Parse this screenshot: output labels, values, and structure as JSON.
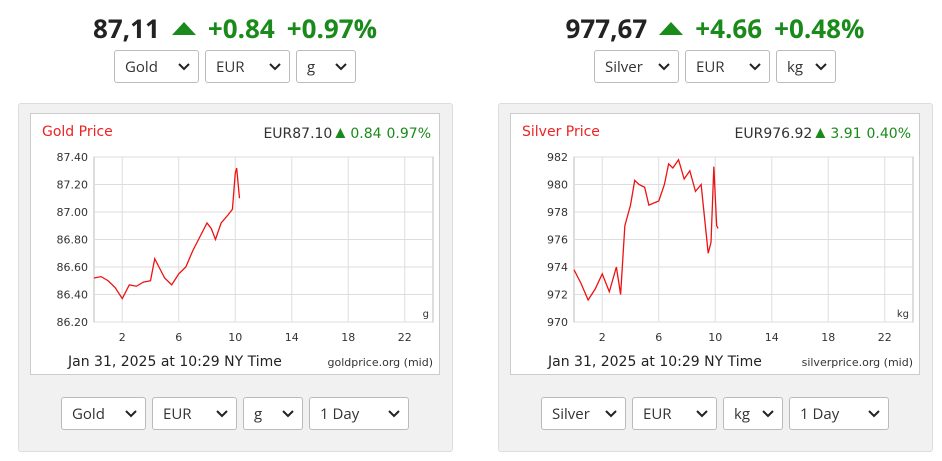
{
  "panels": [
    {
      "price": "87,11",
      "change": "+0.84",
      "change_pct": "+0.97%",
      "top_selects": [
        "Gold",
        "EUR",
        "g"
      ],
      "chart": {
        "type": "line",
        "title": "Gold Price",
        "quote": "EUR87.10",
        "quote_change": "0.84",
        "quote_change_pct": "0.97%",
        "unit": "g",
        "timestamp": "Jan 31, 2025 at 10:29 NY Time",
        "source": "goldprice.org (mid)",
        "x": [
          0,
          0.5,
          1,
          1.5,
          2,
          2.5,
          3,
          3.5,
          4,
          4.3,
          4.6,
          5,
          5.5,
          6,
          6.5,
          7,
          7.5,
          8,
          8.3,
          8.6,
          9,
          9.5,
          9.8,
          10,
          10.1,
          10.3
        ],
        "values": [
          86.52,
          86.53,
          86.5,
          86.45,
          86.37,
          86.47,
          86.46,
          86.49,
          86.5,
          86.66,
          86.6,
          86.52,
          86.47,
          86.55,
          86.6,
          86.72,
          86.82,
          86.92,
          86.88,
          86.8,
          86.92,
          86.98,
          87.02,
          87.28,
          87.32,
          87.1
        ],
        "color": "#ee1111",
        "xlim": [
          0,
          24
        ],
        "xticks": [
          2,
          6,
          10,
          14,
          18,
          22
        ],
        "ylim": [
          86.2,
          87.4
        ],
        "yticks": [
          {
            "value": 86.2,
            "label": "86.20"
          },
          {
            "value": 86.4,
            "label": "86.40"
          },
          {
            "value": 86.6,
            "label": "86.60"
          },
          {
            "value": 86.8,
            "label": "86.80"
          },
          {
            "value": 87,
            "label": "87.00"
          },
          {
            "value": 87.2,
            "label": "87.20"
          },
          {
            "value": 87.4,
            "label": "87.40"
          }
        ],
        "grid": true
      },
      "bottom_selects": [
        "Gold",
        "EUR",
        "g",
        "1 Day"
      ]
    },
    {
      "price": "977,67",
      "change": "+4.66",
      "change_pct": "+0.48%",
      "top_selects": [
        "Silver",
        "EUR",
        "kg"
      ],
      "chart": {
        "type": "line",
        "title": "Silver Price",
        "quote": "EUR976.92",
        "quote_change": "3.91",
        "quote_change_pct": "0.40%",
        "unit": "kg",
        "timestamp": "Jan 31, 2025 at 10:29 NY Time",
        "source": "silverprice.org (mid)",
        "x": [
          0,
          0.5,
          1,
          1.5,
          2,
          2.5,
          3,
          3.3,
          3.6,
          4,
          4.3,
          4.6,
          5,
          5.3,
          6,
          6.4,
          6.7,
          7,
          7.4,
          7.8,
          8.2,
          8.6,
          9,
          9.3,
          9.5,
          9.7,
          9.9,
          10.1,
          10.2
        ],
        "values": [
          973.8,
          972.8,
          971.6,
          972.4,
          973.5,
          972.2,
          974,
          972,
          977,
          978.5,
          980.3,
          980,
          979.8,
          978.5,
          978.8,
          980,
          981.5,
          981.2,
          981.8,
          980.4,
          981,
          979.5,
          980,
          977,
          975,
          975.8,
          981.3,
          977,
          976.8
        ],
        "color": "#ee1111",
        "xlim": [
          0,
          24
        ],
        "xticks": [
          2,
          6,
          10,
          14,
          18,
          22
        ],
        "ylim": [
          970,
          982
        ],
        "yticks": [
          970,
          972,
          974,
          976,
          978,
          980,
          982
        ],
        "grid": true
      },
      "bottom_selects": [
        "Silver",
        "EUR",
        "kg",
        "1 Day"
      ]
    }
  ]
}
